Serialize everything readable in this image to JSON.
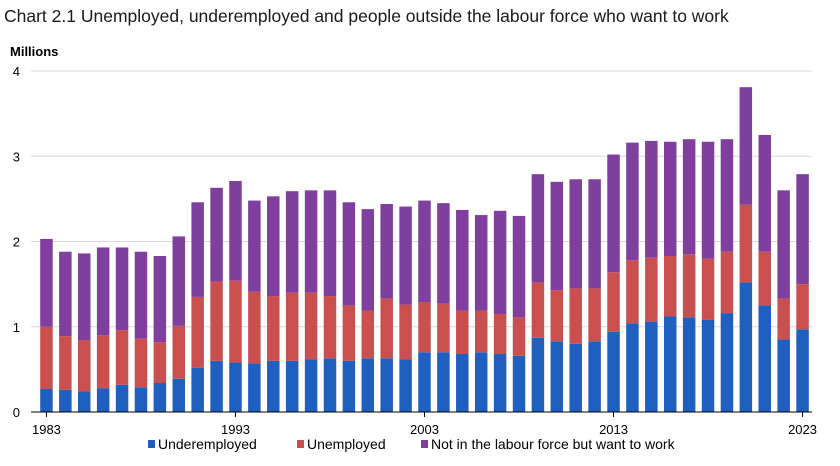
{
  "chart_data": {
    "type": "bar",
    "stacked": true,
    "title": "Chart 2.1 Unemployed, underemployed and people outside the labour force who want to work",
    "ylabel": "Millions",
    "xlabel": "",
    "ylim": [
      0,
      4
    ],
    "yticks": [
      "0",
      "1",
      "2",
      "3",
      "4"
    ],
    "xticks": [
      "1983",
      "1993",
      "2003",
      "2013",
      "2023"
    ],
    "grid": true,
    "legend_position": "bottom",
    "categories": [
      "1983",
      "1984",
      "1985",
      "1986",
      "1987",
      "1988",
      "1989",
      "1990",
      "1991",
      "1992",
      "1993",
      "1994",
      "1995",
      "1996",
      "1997",
      "1998",
      "1999",
      "2000",
      "2001",
      "2002",
      "2003",
      "2004",
      "2005",
      "2006",
      "2007",
      "2008",
      "2009",
      "2010",
      "2011",
      "2012",
      "2013",
      "2014",
      "2015",
      "2016",
      "2017",
      "2018",
      "2019",
      "2020",
      "2021",
      "2022",
      "2023"
    ],
    "series": [
      {
        "name": "Underemployed",
        "color": "#1f5fbf",
        "values": [
          0.27,
          0.26,
          0.24,
          0.28,
          0.32,
          0.29,
          0.34,
          0.39,
          0.52,
          0.6,
          0.58,
          0.57,
          0.6,
          0.6,
          0.62,
          0.63,
          0.6,
          0.63,
          0.63,
          0.62,
          0.7,
          0.7,
          0.68,
          0.7,
          0.68,
          0.66,
          0.87,
          0.83,
          0.8,
          0.83,
          0.94,
          1.04,
          1.06,
          1.12,
          1.11,
          1.08,
          1.16,
          1.52,
          1.25,
          0.85,
          0.97
        ]
      },
      {
        "name": "Unemployed",
        "color": "#c9504f",
        "values": [
          0.73,
          0.63,
          0.6,
          0.62,
          0.64,
          0.57,
          0.48,
          0.62,
          0.83,
          0.93,
          0.96,
          0.84,
          0.76,
          0.8,
          0.78,
          0.73,
          0.65,
          0.56,
          0.7,
          0.64,
          0.59,
          0.57,
          0.51,
          0.49,
          0.47,
          0.45,
          0.65,
          0.6,
          0.65,
          0.62,
          0.7,
          0.74,
          0.75,
          0.71,
          0.74,
          0.72,
          0.72,
          0.91,
          0.63,
          0.48,
          0.53
        ]
      },
      {
        "name": "Not in the labour force but want to work",
        "color": "#7f3f9f",
        "values": [
          1.03,
          0.99,
          1.02,
          1.03,
          0.97,
          1.02,
          1.01,
          1.05,
          1.11,
          1.1,
          1.17,
          1.07,
          1.17,
          1.19,
          1.2,
          1.24,
          1.21,
          1.19,
          1.11,
          1.15,
          1.19,
          1.18,
          1.18,
          1.12,
          1.21,
          1.19,
          1.27,
          1.27,
          1.28,
          1.28,
          1.38,
          1.38,
          1.37,
          1.34,
          1.35,
          1.37,
          1.32,
          1.38,
          1.37,
          1.27,
          1.29
        ]
      }
    ]
  }
}
